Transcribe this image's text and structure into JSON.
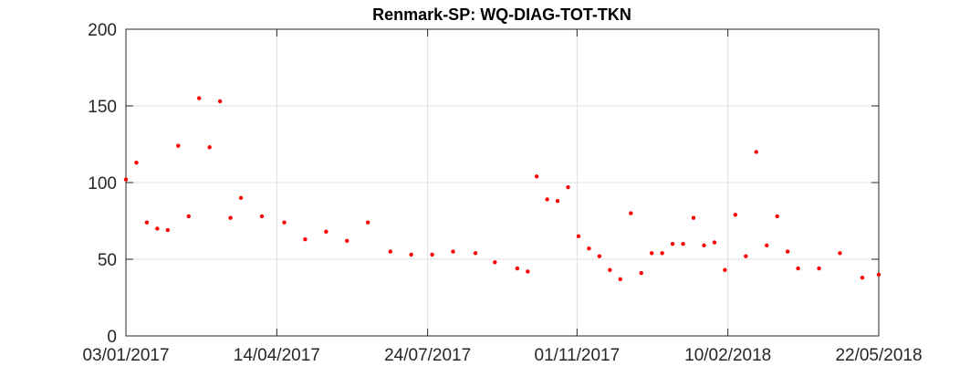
{
  "chart_data": {
    "type": "scatter",
    "title": "Renmark-SP: WQ-DIAG-TOT-TKN",
    "xlabel": "",
    "ylabel": "",
    "xlim": [
      "2017-01-03",
      "2018-05-22"
    ],
    "ylim": [
      0,
      200
    ],
    "x_ticks": [
      "03/01/2017",
      "14/04/2017",
      "24/07/2017",
      "01/11/2017",
      "10/02/2018",
      "22/05/2018"
    ],
    "y_ticks": [
      "0",
      "50",
      "100",
      "150",
      "200"
    ],
    "grid": true,
    "marker_color": "#ff0000",
    "series": [
      {
        "x": [
          "2017-01-03",
          "2017-01-10",
          "2017-01-17",
          "2017-01-24",
          "2017-01-31",
          "2017-02-07",
          "2017-02-14",
          "2017-02-21",
          "2017-02-28",
          "2017-03-07",
          "2017-03-14",
          "2017-03-21",
          "2017-04-04",
          "2017-04-19",
          "2017-05-03",
          "2017-05-17",
          "2017-05-31",
          "2017-06-14",
          "2017-06-29",
          "2017-07-13",
          "2017-07-27",
          "2017-08-10",
          "2017-08-25",
          "2017-09-07",
          "2017-09-22",
          "2017-09-29",
          "2017-10-05",
          "2017-10-12",
          "2017-10-19",
          "2017-10-26",
          "2017-11-02",
          "2017-11-09",
          "2017-11-16",
          "2017-11-23",
          "2017-11-30",
          "2017-12-07",
          "2017-12-14",
          "2017-12-21",
          "2017-12-28",
          "2018-01-04",
          "2018-01-11",
          "2018-01-18",
          "2018-01-25",
          "2018-02-01",
          "2018-02-08",
          "2018-02-15",
          "2018-02-22",
          "2018-03-01",
          "2018-03-08",
          "2018-03-15",
          "2018-03-22",
          "2018-03-29",
          "2018-04-12",
          "2018-04-26",
          "2018-05-11",
          "2018-05-22"
        ],
        "values": [
          102,
          113,
          74,
          70,
          69,
          124,
          78,
          155,
          123,
          153,
          77,
          90,
          78,
          74,
          63,
          68,
          62,
          74,
          55,
          53,
          53,
          55,
          54,
          48,
          44,
          42,
          104,
          89,
          88,
          97,
          65,
          57,
          52,
          43,
          37,
          80,
          41,
          54,
          54,
          60,
          60,
          77,
          59,
          61,
          43,
          79,
          52,
          120,
          59,
          78,
          55,
          44,
          44,
          54,
          38,
          40
        ]
      }
    ]
  }
}
